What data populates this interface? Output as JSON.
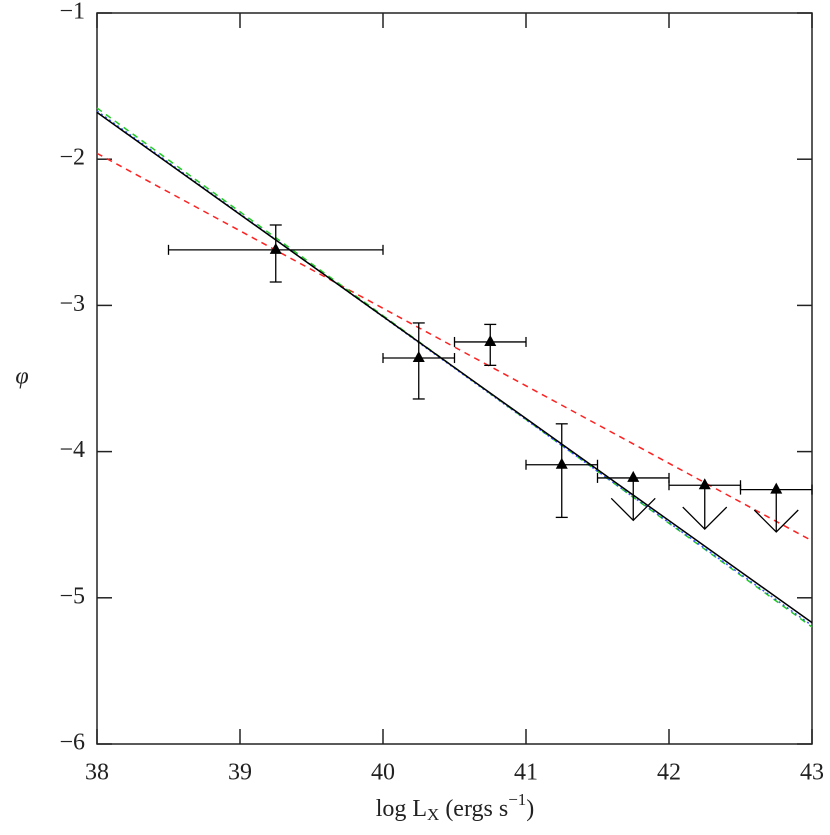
{
  "chart_data": {
    "type": "scatter",
    "xlabel": {
      "main": "log L",
      "sub": "X",
      "mid": " (ergs s",
      "sup": "−1",
      "end": ")"
    },
    "ylabel": "φ",
    "xlim": [
      38,
      43
    ],
    "ylim": [
      -6,
      -1
    ],
    "xticks": [
      38,
      39,
      40,
      41,
      42,
      43
    ],
    "yticks": [
      {
        "value": -6,
        "label": "−6"
      },
      {
        "value": -5,
        "label": "−5"
      },
      {
        "value": -4,
        "label": "−4"
      },
      {
        "value": -3,
        "label": "−3"
      },
      {
        "value": -2,
        "label": "−2"
      },
      {
        "value": -1,
        "label": "−1"
      }
    ],
    "points": {
      "color": "#000000",
      "x": [
        39.25,
        40.25,
        40.75,
        41.25,
        41.75,
        42.25,
        42.75
      ],
      "y": [
        -2.62,
        -3.36,
        -3.25,
        -4.09,
        -4.18,
        -4.23,
        -4.26
      ],
      "x_low": [
        38.5,
        40.0,
        40.5,
        41.0,
        41.5,
        42.0,
        42.5
      ],
      "x_high": [
        40.0,
        40.5,
        41.0,
        41.5,
        42.0,
        42.5,
        43.0
      ],
      "y_low": [
        -2.84,
        -3.64,
        -3.41,
        -4.45,
        -4.47,
        -4.53,
        -4.55
      ],
      "y_high": [
        -2.45,
        -3.12,
        -3.13,
        -3.81,
        null,
        null,
        null
      ],
      "upper_limit": [
        false,
        false,
        false,
        false,
        true,
        true,
        true
      ]
    },
    "lines": [
      {
        "color": "#ff2020",
        "dash": "6,5",
        "x": [
          38,
          43
        ],
        "y": [
          -1.96,
          -4.61
        ]
      },
      {
        "color": "#22cc22",
        "dash": "6,5",
        "x": [
          38,
          43
        ],
        "y": [
          -1.65,
          -5.2
        ]
      },
      {
        "color": "#3355ff",
        "dash": "2,3",
        "x": [
          38,
          43
        ],
        "y": [
          -1.67,
          -5.19
        ]
      },
      {
        "color": "#000000",
        "dash": "none",
        "x": [
          38,
          43
        ],
        "y": [
          -1.68,
          -5.17
        ]
      }
    ]
  }
}
